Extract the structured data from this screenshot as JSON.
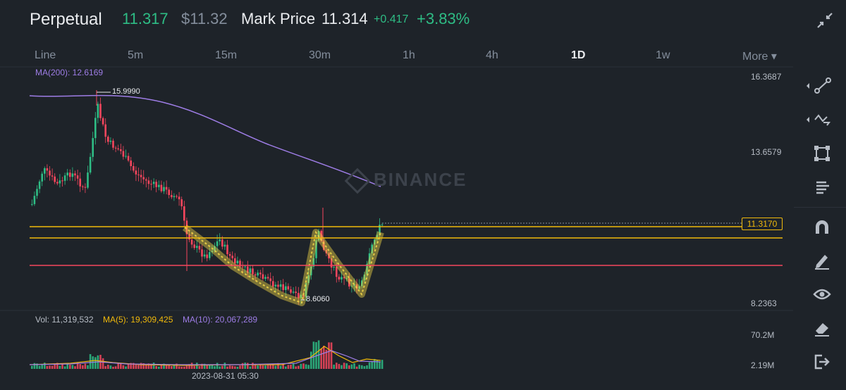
{
  "header": {
    "title": "Perpetual",
    "last_price": "11.317",
    "usd_price": "$11.32",
    "mark_label": "Mark Price",
    "mark_price": "11.314",
    "change": "+0.417",
    "change_pct": "+3.83%"
  },
  "intervals": [
    {
      "label": "Line"
    },
    {
      "label": "5m"
    },
    {
      "label": "15m"
    },
    {
      "label": "30m"
    },
    {
      "label": "1h"
    },
    {
      "label": "4h"
    },
    {
      "label": "1D",
      "active": true
    },
    {
      "label": "1w"
    },
    {
      "label": "More ▾"
    }
  ],
  "chart": {
    "ma200_label": "MA(200): 12.6169",
    "price_axis": [
      "16.3687",
      "13.6579",
      "8.2363"
    ],
    "current_price_tag": "11.3170",
    "high_annotation": "15.9990",
    "low_annotation": "8.6060",
    "watermark": "BINANCE",
    "vol_label": "Vol: 11,319,532",
    "ma5_label": "MA(5): 19,309,425",
    "ma10_label": "MA(10): 20,067,289",
    "vol_axis": [
      "70.2M",
      "2.19M"
    ],
    "time_label": "2023-08-31 05:30"
  },
  "colors": {
    "background": "#1e2329",
    "up": "#2ebd85",
    "down": "#f6465d",
    "ma200": "#9e7de6",
    "ma5": "#f0b90b",
    "support_line": "#f0b90b",
    "red_line": "#f6465d"
  },
  "toolbar": [
    {
      "icon": "trendline-icon"
    },
    {
      "icon": "multi-line-icon"
    },
    {
      "icon": "rectangle-icon"
    },
    {
      "icon": "text-lines-icon"
    },
    {
      "icon": "magnet-icon"
    },
    {
      "icon": "pencil-icon"
    },
    {
      "icon": "eye-icon"
    },
    {
      "icon": "eraser-icon"
    },
    {
      "icon": "exit-icon"
    }
  ]
}
